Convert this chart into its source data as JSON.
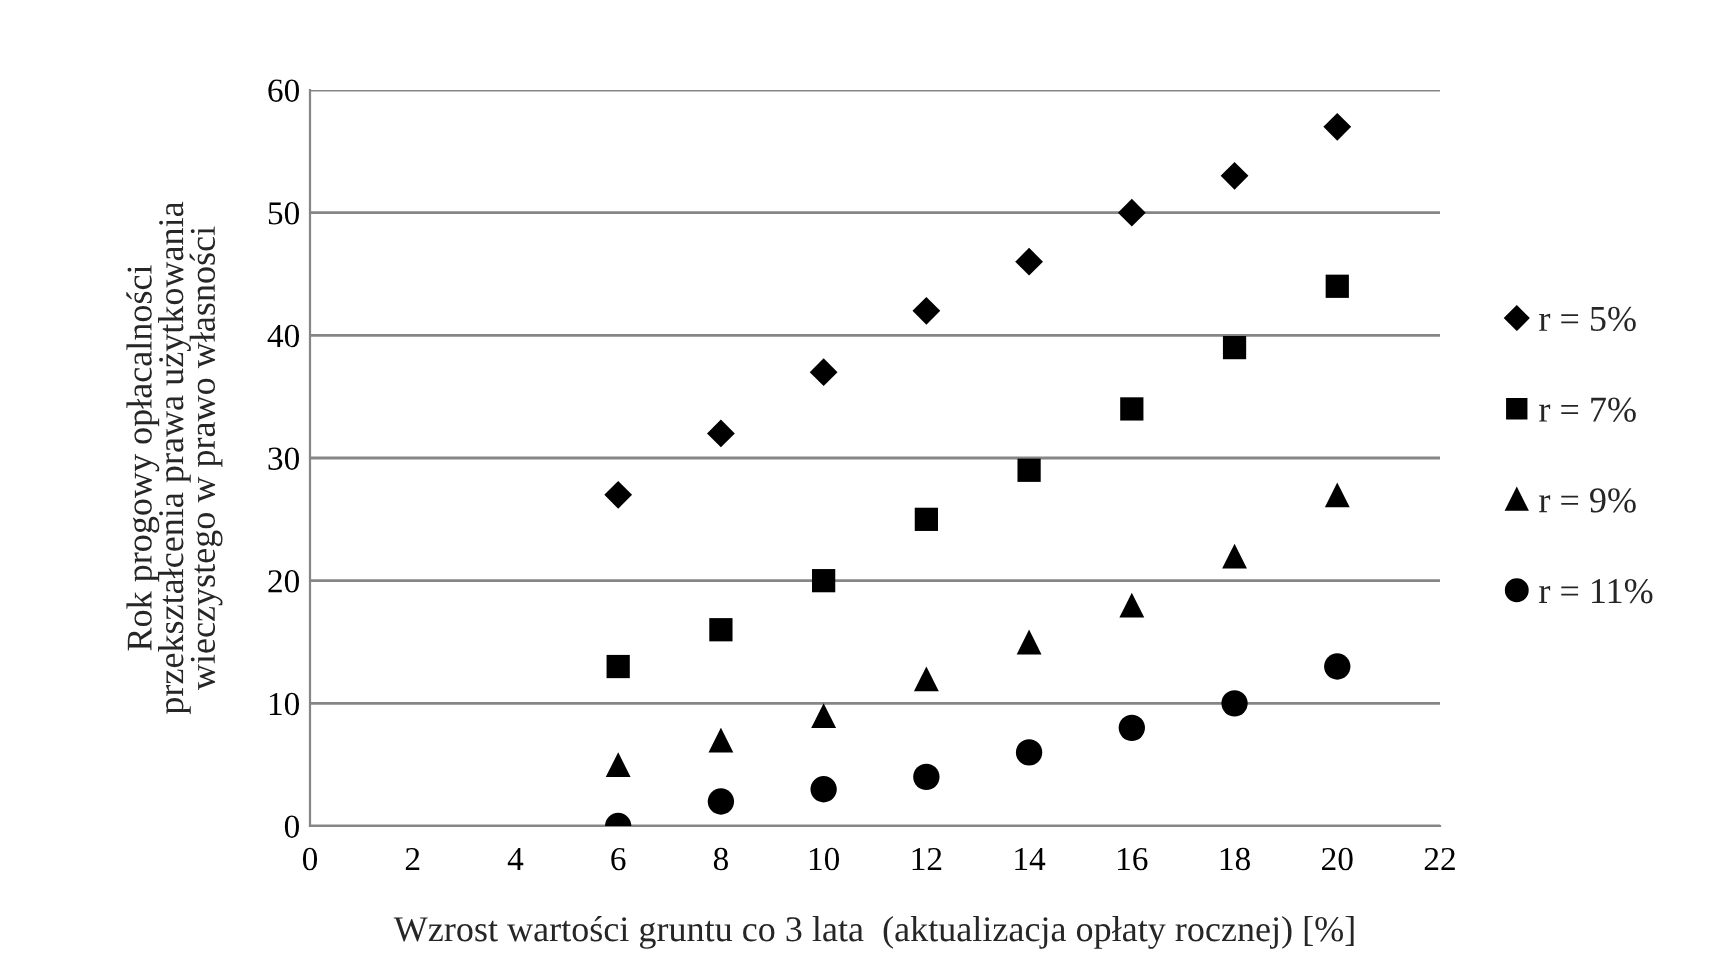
{
  "chart_data": {
    "type": "scatter",
    "xlabel": "Wzrost wartości gruntu co 3 lata  (aktualizacja opłaty rocznej) [%]",
    "ylabel": "Rok progowy opłacalności\nprzekształcenia prawa użytkowania\nwieczystego w prawo własności",
    "x": [
      6,
      8,
      10,
      12,
      14,
      16,
      18,
      20
    ],
    "series": [
      {
        "name": "r = 5%",
        "color": "#000000",
        "marker": "diamond",
        "values": [
          27,
          32,
          37,
          42,
          46,
          50,
          53,
          57
        ]
      },
      {
        "name": "r = 7%",
        "color": "#000000",
        "marker": "square",
        "values": [
          13,
          16,
          20,
          25,
          29,
          34,
          39,
          44
        ]
      },
      {
        "name": "r = 9%",
        "color": "#000000",
        "marker": "triangle",
        "values": [
          5,
          7,
          9,
          12,
          15,
          18,
          22,
          27
        ]
      },
      {
        "name": "r = 11%",
        "color": "#000000",
        "marker": "circle",
        "values": [
          0,
          2,
          3,
          4,
          6,
          8,
          10,
          13
        ]
      }
    ],
    "xlim": [
      0,
      22
    ],
    "xticks": [
      0,
      2,
      4,
      6,
      8,
      10,
      12,
      14,
      16,
      18,
      20,
      22
    ],
    "ylim": [
      0,
      60
    ],
    "yticks": [
      0,
      10,
      20,
      30,
      40,
      50,
      60
    ],
    "grid": "y",
    "legend": "right"
  }
}
